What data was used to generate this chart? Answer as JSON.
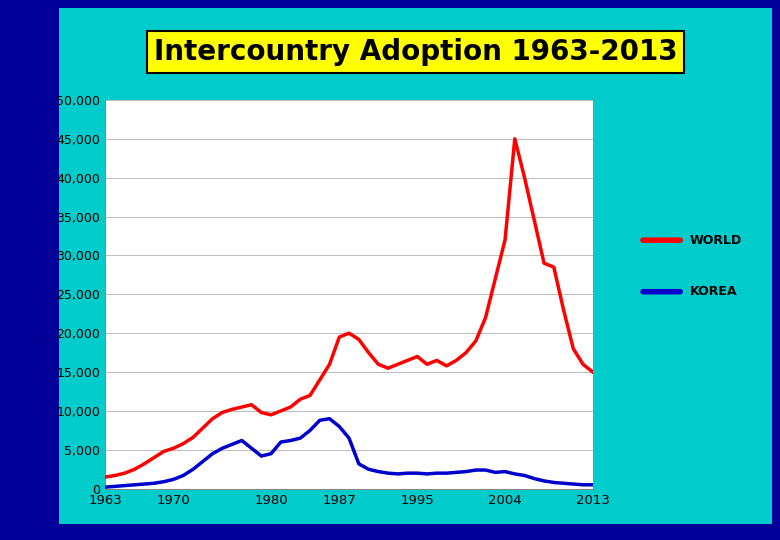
{
  "title": "Intercountry Adoption 1963-2013",
  "title_bg": "#FFFF00",
  "title_fontsize": 20,
  "outer_bg": "#000099",
  "inner_bg": "#00CCCC",
  "plot_bg": "#FFFFFF",
  "ylim": [
    0,
    50000
  ],
  "yticks": [
    0,
    5000,
    10000,
    15000,
    20000,
    25000,
    30000,
    35000,
    40000,
    45000,
    50000
  ],
  "xticks": [
    1963,
    1970,
    1980,
    1987,
    1995,
    2004,
    2013
  ],
  "world_color": "#FF0000",
  "korea_color": "#0000CC",
  "line_width": 2.5,
  "world_data": {
    "years": [
      1963,
      1964,
      1965,
      1966,
      1967,
      1968,
      1969,
      1970,
      1971,
      1972,
      1973,
      1974,
      1975,
      1976,
      1977,
      1978,
      1979,
      1980,
      1981,
      1982,
      1983,
      1984,
      1985,
      1986,
      1987,
      1988,
      1989,
      1990,
      1991,
      1992,
      1993,
      1994,
      1995,
      1996,
      1997,
      1998,
      1999,
      2000,
      2001,
      2002,
      2003,
      2004,
      2005,
      2006,
      2007,
      2008,
      2009,
      2010,
      2011,
      2012,
      2013
    ],
    "values": [
      1500,
      1700,
      2000,
      2500,
      3200,
      4000,
      4800,
      5200,
      5800,
      6600,
      7800,
      9000,
      9800,
      10200,
      10500,
      10800,
      9800,
      9500,
      10000,
      10500,
      11500,
      12000,
      14000,
      16000,
      19500,
      20000,
      19200,
      17500,
      16000,
      15500,
      16000,
      16500,
      17000,
      16000,
      16500,
      15800,
      16500,
      17500,
      19000,
      22000,
      27000,
      32000,
      45000,
      40000,
      34500,
      29000,
      28500,
      23000,
      18000,
      16000,
      15000
    ]
  },
  "korea_data": {
    "years": [
      1963,
      1964,
      1965,
      1966,
      1967,
      1968,
      1969,
      1970,
      1971,
      1972,
      1973,
      1974,
      1975,
      1976,
      1977,
      1978,
      1979,
      1980,
      1981,
      1982,
      1983,
      1984,
      1985,
      1986,
      1987,
      1988,
      1989,
      1990,
      1991,
      1992,
      1993,
      1994,
      1995,
      1996,
      1997,
      1998,
      1999,
      2000,
      2001,
      2002,
      2003,
      2004,
      2005,
      2006,
      2007,
      2008,
      2009,
      2010,
      2011,
      2012,
      2013
    ],
    "values": [
      200,
      300,
      400,
      500,
      600,
      700,
      900,
      1200,
      1700,
      2500,
      3500,
      4500,
      5200,
      5700,
      6200,
      5200,
      4200,
      4500,
      6000,
      6200,
      6500,
      7500,
      8800,
      9000,
      8000,
      6500,
      3200,
      2500,
      2200,
      2000,
      1900,
      2000,
      2000,
      1900,
      2000,
      2000,
      2100,
      2200,
      2400,
      2400,
      2100,
      2200,
      1900,
      1700,
      1300,
      1000,
      800,
      700,
      600,
      500,
      500
    ]
  },
  "legend_labels": [
    "WORLD",
    "KOREA"
  ],
  "legend_colors": [
    "#FF0000",
    "#0000CC"
  ]
}
